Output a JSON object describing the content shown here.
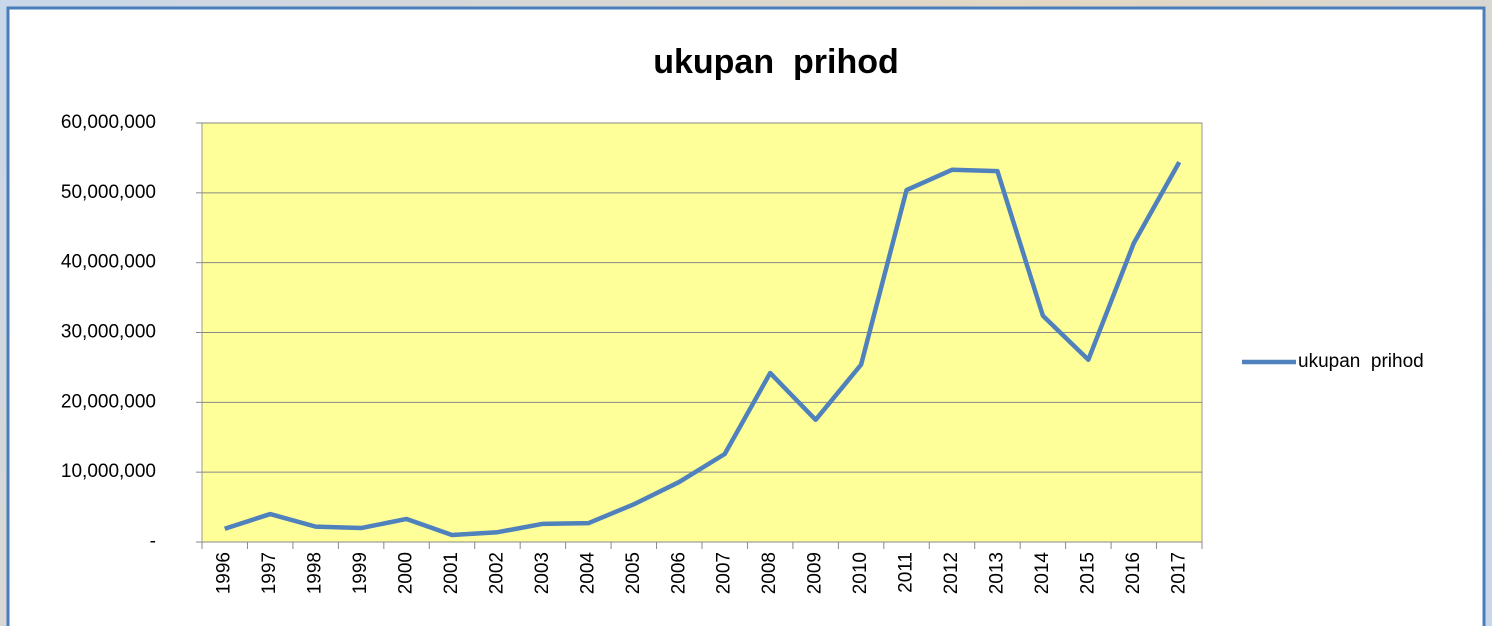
{
  "chart_data": {
    "type": "line",
    "title": "ukupan  prihod",
    "categories": [
      "1996",
      "1997",
      "1998",
      "1999",
      "2000",
      "2001",
      "2002",
      "2003",
      "2004",
      "2005",
      "2006",
      "2007",
      "2008",
      "2009",
      "2010",
      "2011",
      "2012",
      "2013",
      "2014",
      "2015",
      "2016",
      "2017"
    ],
    "series": [
      {
        "name": "ukupan  prihod",
        "color": "#4f81bd",
        "values": [
          1900000,
          4000000,
          2200000,
          2000000,
          3300000,
          1000000,
          1400000,
          2600000,
          2700000,
          5400000,
          8600000,
          12600000,
          24200000,
          17500000,
          25400000,
          50400000,
          53300000,
          53100000,
          32400000,
          26100000,
          42800000,
          54400000
        ]
      }
    ],
    "ylim": [
      0,
      60000000
    ],
    "yticks": [
      {
        "value": 0,
        "label": "-"
      },
      {
        "value": 10000000,
        "label": "10,000,000"
      },
      {
        "value": 20000000,
        "label": "20,000,000"
      },
      {
        "value": 30000000,
        "label": "30,000,000"
      },
      {
        "value": 40000000,
        "label": "40,000,000"
      },
      {
        "value": 50000000,
        "label": "50,000,000"
      },
      {
        "value": 60000000,
        "label": "60,000,000"
      }
    ],
    "grid": true,
    "legend": "right",
    "plot_background": "#ffff99"
  }
}
